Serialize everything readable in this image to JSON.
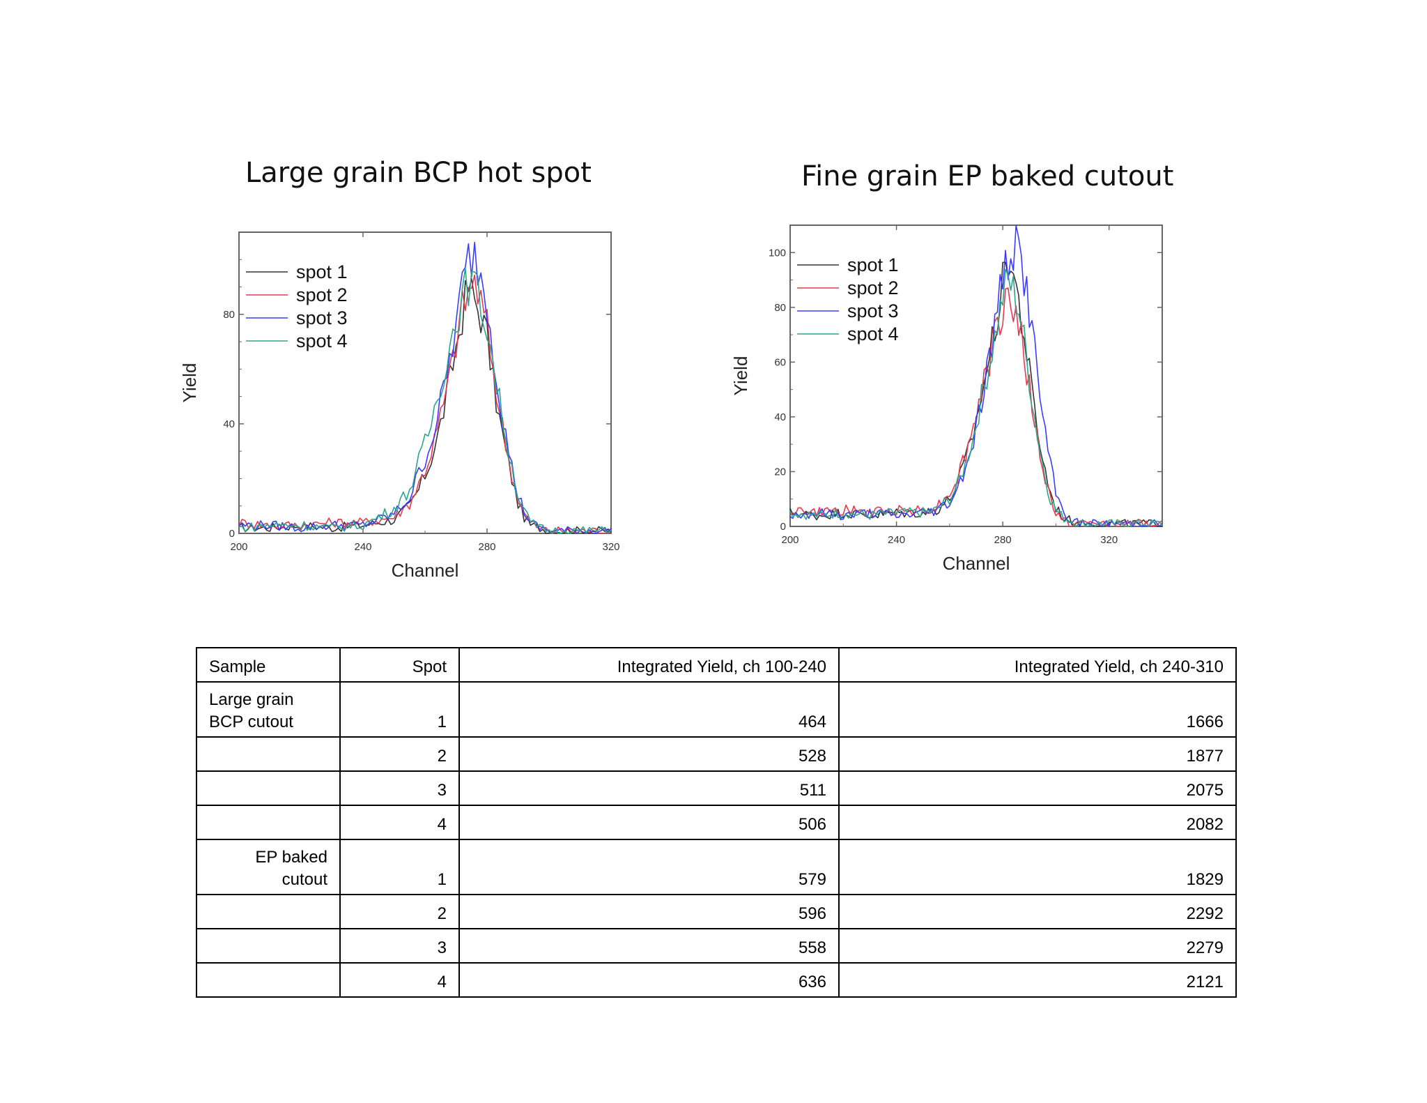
{
  "titles": {
    "left": "Large grain BCP hot spot",
    "right": "Fine grain EP baked cutout"
  },
  "chart_data": [
    {
      "type": "line",
      "title": "Large grain BCP hot spot",
      "xlabel": "Channel",
      "ylabel": "Yield",
      "xlim": [
        200,
        320
      ],
      "ylim": [
        0,
        110
      ],
      "xticks": [
        "200",
        "240",
        "280",
        "320"
      ],
      "yticks": [
        "0",
        "40",
        "80"
      ],
      "legend": "top-left",
      "grid": false,
      "series": [
        {
          "name": "spot 1",
          "color": "#333333",
          "x": [
            200,
            210,
            220,
            230,
            240,
            245,
            250,
            255,
            258,
            261,
            264,
            267,
            270,
            272,
            274,
            276,
            278,
            280,
            282,
            284,
            286,
            288,
            290,
            292,
            294,
            297,
            300,
            305,
            310,
            320
          ],
          "y": [
            2,
            2,
            3,
            2,
            3,
            4,
            5,
            10,
            16,
            24,
            35,
            50,
            68,
            80,
            90,
            85,
            80,
            72,
            55,
            42,
            30,
            20,
            11,
            6,
            3,
            2,
            1,
            1,
            1,
            1
          ]
        },
        {
          "name": "spot 2",
          "color": "#e8384f",
          "x": [
            200,
            210,
            220,
            230,
            240,
            245,
            250,
            255,
            258,
            261,
            264,
            267,
            270,
            272,
            274,
            276,
            278,
            280,
            282,
            284,
            286,
            288,
            290,
            292,
            294,
            297,
            300,
            305,
            310,
            320
          ],
          "y": [
            4,
            3,
            3,
            4,
            4,
            5,
            6,
            11,
            18,
            26,
            38,
            52,
            70,
            82,
            88,
            92,
            84,
            75,
            60,
            45,
            33,
            22,
            13,
            7,
            4,
            2,
            1,
            1,
            1,
            1
          ]
        },
        {
          "name": "spot 3",
          "color": "#3b3bff",
          "x": [
            200,
            210,
            220,
            230,
            240,
            245,
            250,
            255,
            258,
            261,
            264,
            267,
            270,
            272,
            274,
            276,
            278,
            280,
            282,
            284,
            286,
            288,
            290,
            292,
            294,
            297,
            300,
            305,
            310,
            320
          ],
          "y": [
            3,
            3,
            2,
            3,
            3,
            5,
            7,
            13,
            22,
            30,
            42,
            58,
            75,
            90,
            100,
            102,
            95,
            85,
            68,
            50,
            36,
            24,
            14,
            8,
            4,
            2,
            1,
            1,
            1,
            1
          ]
        },
        {
          "name": "spot 4",
          "color": "#2aa68a",
          "x": [
            200,
            210,
            220,
            230,
            240,
            245,
            250,
            255,
            258,
            261,
            264,
            267,
            270,
            272,
            274,
            276,
            278,
            280,
            282,
            284,
            286,
            288,
            290,
            292,
            294,
            297,
            300,
            305,
            310,
            320
          ],
          "y": [
            2,
            3,
            3,
            2,
            3,
            6,
            9,
            16,
            26,
            36,
            50,
            64,
            78,
            86,
            92,
            90,
            84,
            76,
            62,
            48,
            36,
            24,
            14,
            8,
            4,
            2,
            1,
            1,
            1,
            1
          ]
        }
      ]
    },
    {
      "type": "line",
      "title": "Fine grain EP baked cutout",
      "xlabel": "Channel",
      "ylabel": "Yield",
      "xlim": [
        200,
        340
      ],
      "ylim": [
        0,
        110
      ],
      "xticks": [
        "200",
        "240",
        "280",
        "320"
      ],
      "yticks": [
        "0",
        "20",
        "40",
        "60",
        "80",
        "100"
      ],
      "legend": "top-left",
      "grid": false,
      "series": [
        {
          "name": "spot 1",
          "color": "#333333",
          "x": [
            200,
            210,
            220,
            230,
            240,
            250,
            255,
            260,
            263,
            266,
            269,
            272,
            275,
            278,
            280,
            282,
            284,
            286,
            288,
            290,
            292,
            294,
            296,
            298,
            300,
            303,
            306,
            310,
            320,
            340
          ],
          "y": [
            5,
            4,
            5,
            4,
            5,
            5,
            6,
            10,
            16,
            24,
            34,
            48,
            62,
            78,
            88,
            100,
            92,
            82,
            70,
            56,
            42,
            30,
            20,
            12,
            7,
            3,
            2,
            1,
            1,
            1
          ]
        },
        {
          "name": "spot 2",
          "color": "#e8384f",
          "x": [
            200,
            210,
            220,
            230,
            240,
            250,
            255,
            260,
            263,
            266,
            269,
            272,
            275,
            278,
            280,
            282,
            284,
            286,
            288,
            290,
            292,
            294,
            296,
            298,
            300,
            303,
            306,
            310,
            320,
            340
          ],
          "y": [
            6,
            5,
            6,
            5,
            6,
            6,
            7,
            12,
            18,
            26,
            36,
            50,
            60,
            72,
            80,
            86,
            78,
            74,
            64,
            50,
            38,
            26,
            17,
            10,
            5,
            2,
            1,
            1,
            1,
            1
          ]
        },
        {
          "name": "spot 3",
          "color": "#3b3bff",
          "x": [
            200,
            210,
            220,
            230,
            240,
            250,
            255,
            260,
            263,
            266,
            269,
            272,
            275,
            278,
            280,
            282,
            284,
            286,
            288,
            290,
            292,
            294,
            296,
            298,
            300,
            303,
            306,
            310,
            320,
            340
          ],
          "y": [
            4,
            5,
            4,
            5,
            4,
            5,
            6,
            9,
            14,
            22,
            32,
            46,
            62,
            78,
            92,
            98,
            102,
            100,
            92,
            80,
            64,
            48,
            34,
            22,
            12,
            5,
            2,
            1,
            1,
            1
          ]
        },
        {
          "name": "spot 4",
          "color": "#2aa68a",
          "x": [
            200,
            210,
            220,
            230,
            240,
            250,
            255,
            260,
            263,
            266,
            269,
            272,
            275,
            278,
            280,
            282,
            284,
            286,
            288,
            290,
            292,
            294,
            296,
            298,
            300,
            303,
            306,
            310,
            320,
            340
          ],
          "y": [
            5,
            4,
            5,
            4,
            5,
            5,
            6,
            10,
            15,
            23,
            33,
            47,
            60,
            74,
            84,
            90,
            86,
            80,
            68,
            54,
            40,
            28,
            18,
            10,
            6,
            3,
            2,
            1,
            1,
            1
          ]
        }
      ]
    },
    {
      "type": "table",
      "headers": [
        "Sample",
        "Spot",
        "Integrated Yield, ch 100-240",
        "Integrated Yield, ch 240-310"
      ],
      "rows": [
        [
          "Large grain BCP cutout",
          "1",
          "464",
          "1666"
        ],
        [
          "",
          "2",
          "528",
          "1877"
        ],
        [
          "",
          "3",
          "511",
          "2075"
        ],
        [
          "",
          "4",
          "506",
          "2082"
        ],
        [
          "EP baked cutout",
          "1",
          "579",
          "1829"
        ],
        [
          "",
          "2",
          "596",
          "2292"
        ],
        [
          "",
          "3",
          "558",
          "2279"
        ],
        [
          "",
          "4",
          "636",
          "2121"
        ]
      ]
    }
  ],
  "table": {
    "headers": [
      "Sample",
      "Spot",
      "Integrated Yield, ch 100-240",
      "Integrated Yield, ch 240-310"
    ],
    "sample1_line1": "Large grain",
    "sample1_line2": "BCP cutout",
    "sample2_line1": "EP baked",
    "sample2_line2": "cutout",
    "rows": [
      {
        "spot": "1",
        "low": "464",
        "high": "1666"
      },
      {
        "spot": "2",
        "low": "528",
        "high": "1877"
      },
      {
        "spot": "3",
        "low": "511",
        "high": "2075"
      },
      {
        "spot": "4",
        "low": "506",
        "high": "2082"
      },
      {
        "spot": "1",
        "low": "579",
        "high": "1829"
      },
      {
        "spot": "2",
        "low": "596",
        "high": "2292"
      },
      {
        "spot": "3",
        "low": "558",
        "high": "2279"
      },
      {
        "spot": "4",
        "low": "636",
        "high": "2121"
      }
    ]
  }
}
